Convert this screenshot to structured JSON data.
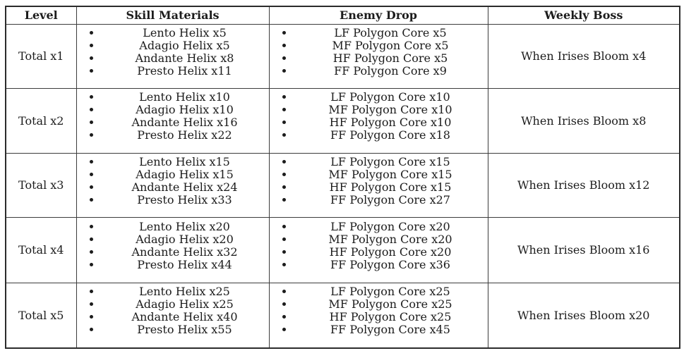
{
  "colors": {
    "background": "#ffffff",
    "outer_border": "#2b2b2b",
    "inner_border": "#3c3c3c",
    "text": "#1c1c1c"
  },
  "table": {
    "columns": [
      "Level",
      "Skill Materials",
      "Enemy Drop",
      "Weekly Boss"
    ],
    "rows": [
      {
        "level": "Total x1",
        "skill_materials": [
          "Lento Helix x5",
          "Adagio Helix x5",
          "Andante Helix x8",
          "Presto Helix x11"
        ],
        "enemy_drop": [
          "LF Polygon Core x5",
          "MF Polygon Core x5",
          "HF Polygon Core x5",
          "FF Polygon Core x9"
        ],
        "weekly_boss": "When Irises Bloom x4"
      },
      {
        "level": "Total x2",
        "skill_materials": [
          "Lento Helix x10",
          "Adagio Helix x10",
          "Andante Helix x16",
          "Presto Helix x22"
        ],
        "enemy_drop": [
          "LF Polygon Core x10",
          "MF Polygon Core x10",
          "HF Polygon Core x10",
          "FF Polygon Core x18"
        ],
        "weekly_boss": "When Irises Bloom x8"
      },
      {
        "level": "Total x3",
        "skill_materials": [
          "Lento Helix x15",
          "Adagio Helix x15",
          "Andante Helix x24",
          "Presto Helix x33"
        ],
        "enemy_drop": [
          "LF Polygon Core x15",
          "MF Polygon Core x15",
          "HF Polygon Core x15",
          "FF Polygon Core x27"
        ],
        "weekly_boss": "When Irises Bloom x12"
      },
      {
        "level": "Total x4",
        "skill_materials": [
          "Lento Helix x20",
          "Adagio Helix x20",
          "Andante Helix x32",
          "Presto Helix x44"
        ],
        "enemy_drop": [
          "LF Polygon Core x20",
          "MF Polygon Core x20",
          "HF Polygon Core x20",
          "FF Polygon Core x36"
        ],
        "weekly_boss": "When Irises Bloom x16"
      },
      {
        "level": "Total x5",
        "skill_materials": [
          "Lento Helix x25",
          "Adagio Helix x25",
          "Andante Helix x40",
          "Presto Helix x55"
        ],
        "enemy_drop": [
          "LF Polygon Core x25",
          "MF Polygon Core x25",
          "HF Polygon Core x25",
          "FF Polygon Core x45"
        ],
        "weekly_boss": "When Irises Bloom x20"
      }
    ]
  }
}
